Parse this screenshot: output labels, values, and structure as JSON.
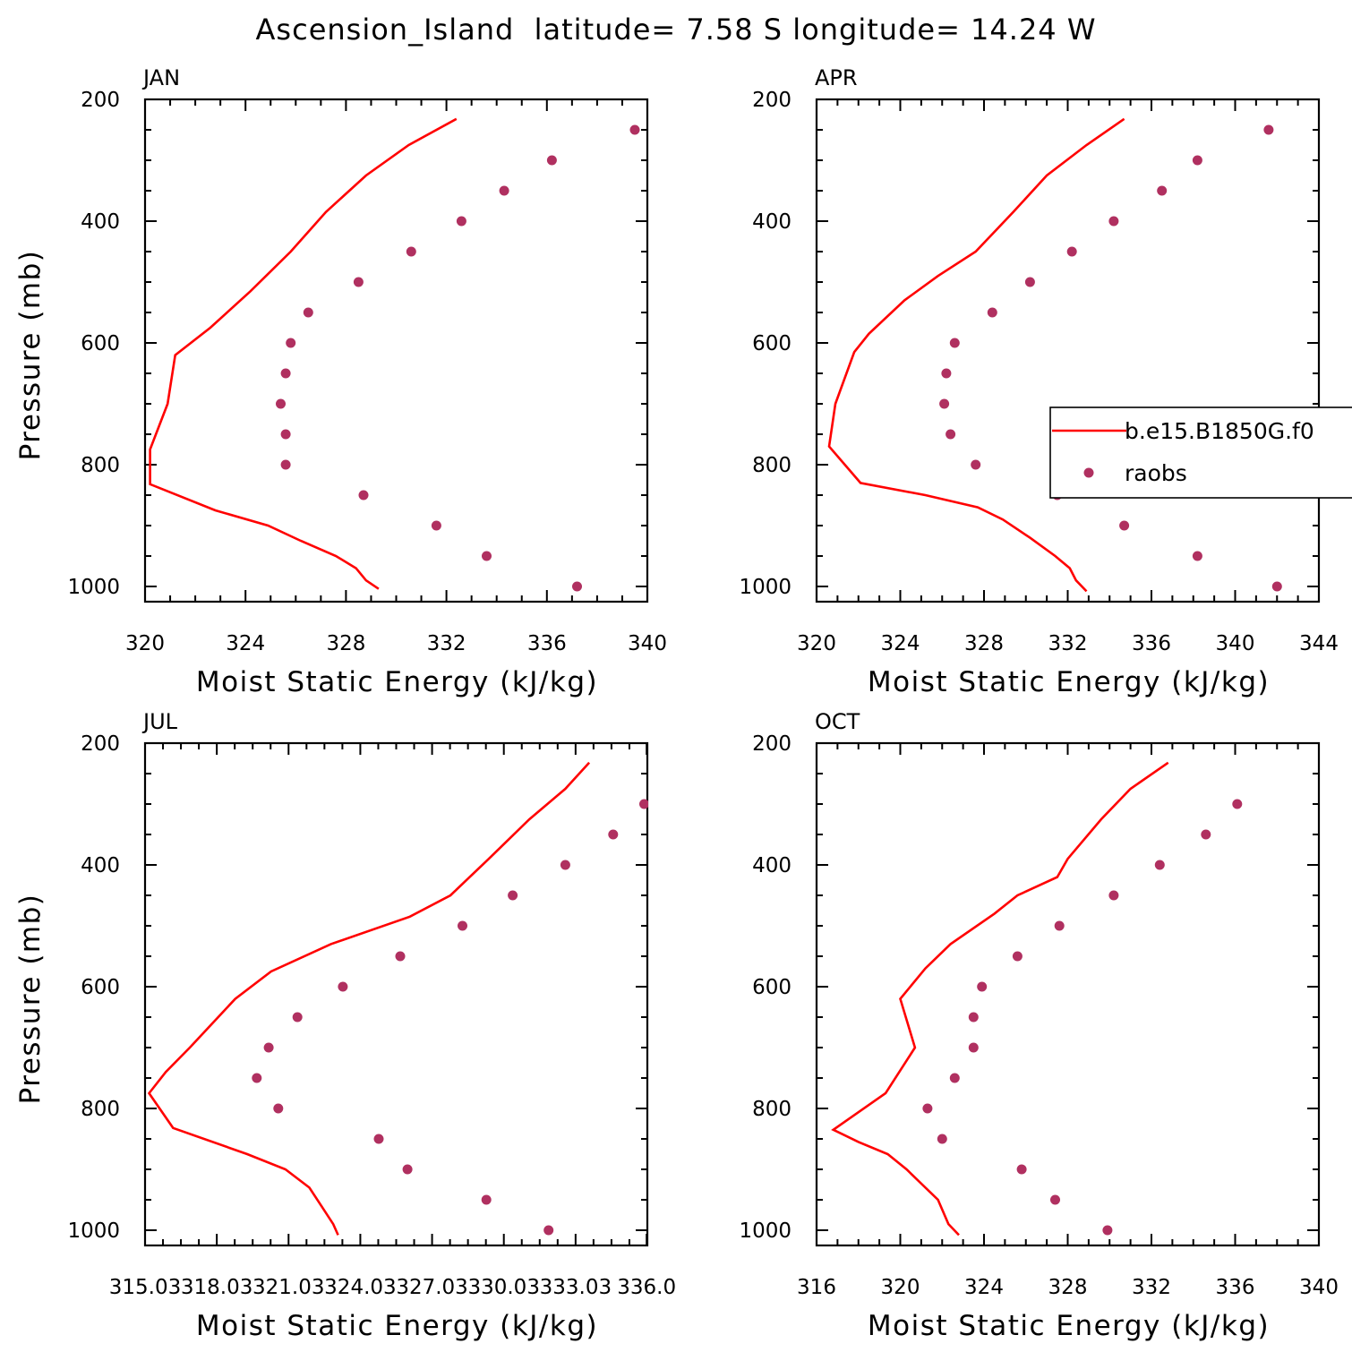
{
  "figure_title": "Ascension_Island  latitude= 7.58 S longitude= 14.24 W",
  "colors": {
    "model": "#ff0000",
    "raobs": "#b03060",
    "axis": "#000000"
  },
  "legend": {
    "model": "b.e15.B1850G.f0",
    "raobs": "raobs"
  },
  "chart_data": [
    {
      "type": "line",
      "panel": "JAN",
      "xlabel": "Moist Static Energy (kJ/kg)",
      "ylabel": "Pressure (mb)",
      "xlim": [
        320,
        340
      ],
      "ylim": [
        1025,
        200
      ],
      "xticks": [
        "320",
        "324",
        "328",
        "332",
        "336",
        "340"
      ],
      "yticks": [
        "200",
        "400",
        "600",
        "800",
        "1000"
      ],
      "series": [
        {
          "name": "b.e15.B1850G.f0",
          "kind": "line",
          "x": [
            332.4,
            330.5,
            328.8,
            327.2,
            325.8,
            324.2,
            322.6,
            321.2,
            320.9,
            320.2,
            320.2,
            322.8,
            324.9,
            326.2,
            327.6,
            328.4,
            328.8,
            329.3
          ],
          "y": [
            232,
            275,
            325,
            385,
            450,
            515,
            575,
            620,
            700,
            775,
            832,
            875,
            900,
            925,
            950,
            970,
            990,
            1004
          ]
        },
        {
          "name": "raobs",
          "kind": "points",
          "x": [
            339.5,
            336.2,
            334.3,
            332.6,
            330.6,
            328.5,
            326.5,
            325.8,
            325.6,
            325.4,
            325.6,
            325.6,
            328.7,
            331.6,
            333.6,
            337.2
          ],
          "y": [
            250,
            300,
            350,
            400,
            450,
            500,
            550,
            600,
            650,
            700,
            750,
            800,
            850,
            900,
            950,
            1000
          ]
        }
      ]
    },
    {
      "type": "line",
      "panel": "APR",
      "xlabel": "Moist Static Energy (kJ/kg)",
      "ylabel": "",
      "xlim": [
        320,
        344
      ],
      "ylim": [
        1025,
        200
      ],
      "xticks": [
        "320",
        "324",
        "328",
        "332",
        "336",
        "340",
        "344"
      ],
      "yticks": [
        "200",
        "400",
        "600",
        "800",
        "1000"
      ],
      "series": [
        {
          "name": "b.e15.B1850G.f0",
          "kind": "line",
          "x": [
            334.7,
            332.9,
            331.0,
            329.4,
            327.6,
            325.8,
            324.2,
            322.5,
            321.8,
            320.9,
            320.6,
            322.1,
            325.2,
            327.7,
            328.9,
            330.2,
            331.4,
            332.1,
            332.4,
            332.9
          ],
          "y": [
            232,
            275,
            325,
            385,
            450,
            490,
            530,
            585,
            615,
            700,
            770,
            830,
            850,
            870,
            890,
            920,
            950,
            970,
            990,
            1008
          ]
        },
        {
          "name": "raobs",
          "kind": "points",
          "x": [
            341.6,
            338.2,
            336.5,
            334.2,
            332.2,
            330.2,
            328.4,
            326.6,
            326.2,
            326.1,
            326.4,
            327.6,
            331.5,
            334.7,
            338.2,
            342.0
          ],
          "y": [
            250,
            300,
            350,
            400,
            450,
            500,
            550,
            600,
            650,
            700,
            750,
            800,
            850,
            900,
            950,
            1000
          ]
        }
      ]
    },
    {
      "type": "line",
      "panel": "JUL",
      "xlabel": "Moist Static Energy (kJ/kg)",
      "ylabel": "Pressure (mb)",
      "xlim": [
        315.03,
        336.03
      ],
      "ylim": [
        1025,
        200
      ],
      "xticks": [
        "315.03",
        "318.03",
        "321.03",
        "324.03",
        "327.03",
        "330.03",
        "333.03",
        "336.0"
      ],
      "yticks": [
        "200",
        "400",
        "600",
        "800",
        "1000"
      ],
      "series": [
        {
          "name": "b.e15.B1850G.f0",
          "kind": "line",
          "x": [
            333.6,
            332.6,
            331.1,
            329.4,
            327.8,
            326.1,
            322.8,
            320.3,
            318.8,
            316.9,
            315.9,
            315.2,
            316.2,
            319.3,
            320.9,
            321.9,
            322.4,
            322.9,
            323.1
          ],
          "y": [
            232,
            275,
            325,
            390,
            450,
            485,
            530,
            575,
            620,
            700,
            740,
            775,
            832,
            875,
            900,
            930,
            960,
            990,
            1008
          ]
        },
        {
          "name": "raobs",
          "kind": "points",
          "x": [
            335.9,
            334.6,
            332.6,
            330.4,
            328.3,
            325.7,
            323.3,
            321.4,
            320.2,
            319.7,
            320.6,
            324.8,
            326.0,
            329.3,
            331.9
          ],
          "y": [
            300,
            350,
            400,
            450,
            500,
            550,
            600,
            650,
            700,
            750,
            800,
            850,
            900,
            950,
            1000
          ]
        }
      ]
    },
    {
      "type": "line",
      "panel": "OCT",
      "xlabel": "Moist Static Energy (kJ/kg)",
      "ylabel": "",
      "xlim": [
        316,
        340
      ],
      "ylim": [
        1025,
        200
      ],
      "xticks": [
        "316",
        "320",
        "324",
        "328",
        "332",
        "336",
        "340"
      ],
      "yticks": [
        "200",
        "400",
        "600",
        "800",
        "1000"
      ],
      "series": [
        {
          "name": "b.e15.B1850G.f0",
          "kind": "line",
          "x": [
            332.8,
            331.0,
            329.6,
            328.0,
            327.5,
            325.6,
            324.5,
            322.4,
            321.2,
            320.0,
            320.7,
            319.3,
            316.8,
            318.0,
            319.4,
            320.3,
            321.8,
            322.3,
            322.8
          ],
          "y": [
            232,
            275,
            325,
            390,
            420,
            450,
            480,
            530,
            570,
            620,
            700,
            775,
            835,
            855,
            875,
            900,
            950,
            990,
            1008
          ]
        },
        {
          "name": "raobs",
          "kind": "points",
          "x": [
            336.1,
            334.6,
            332.4,
            330.2,
            327.6,
            325.6,
            323.9,
            323.5,
            323.5,
            322.6,
            321.3,
            322.0,
            325.8,
            327.4,
            329.9
          ],
          "y": [
            300,
            350,
            400,
            450,
            500,
            550,
            600,
            650,
            700,
            750,
            800,
            850,
            900,
            950,
            1000
          ]
        }
      ]
    }
  ]
}
